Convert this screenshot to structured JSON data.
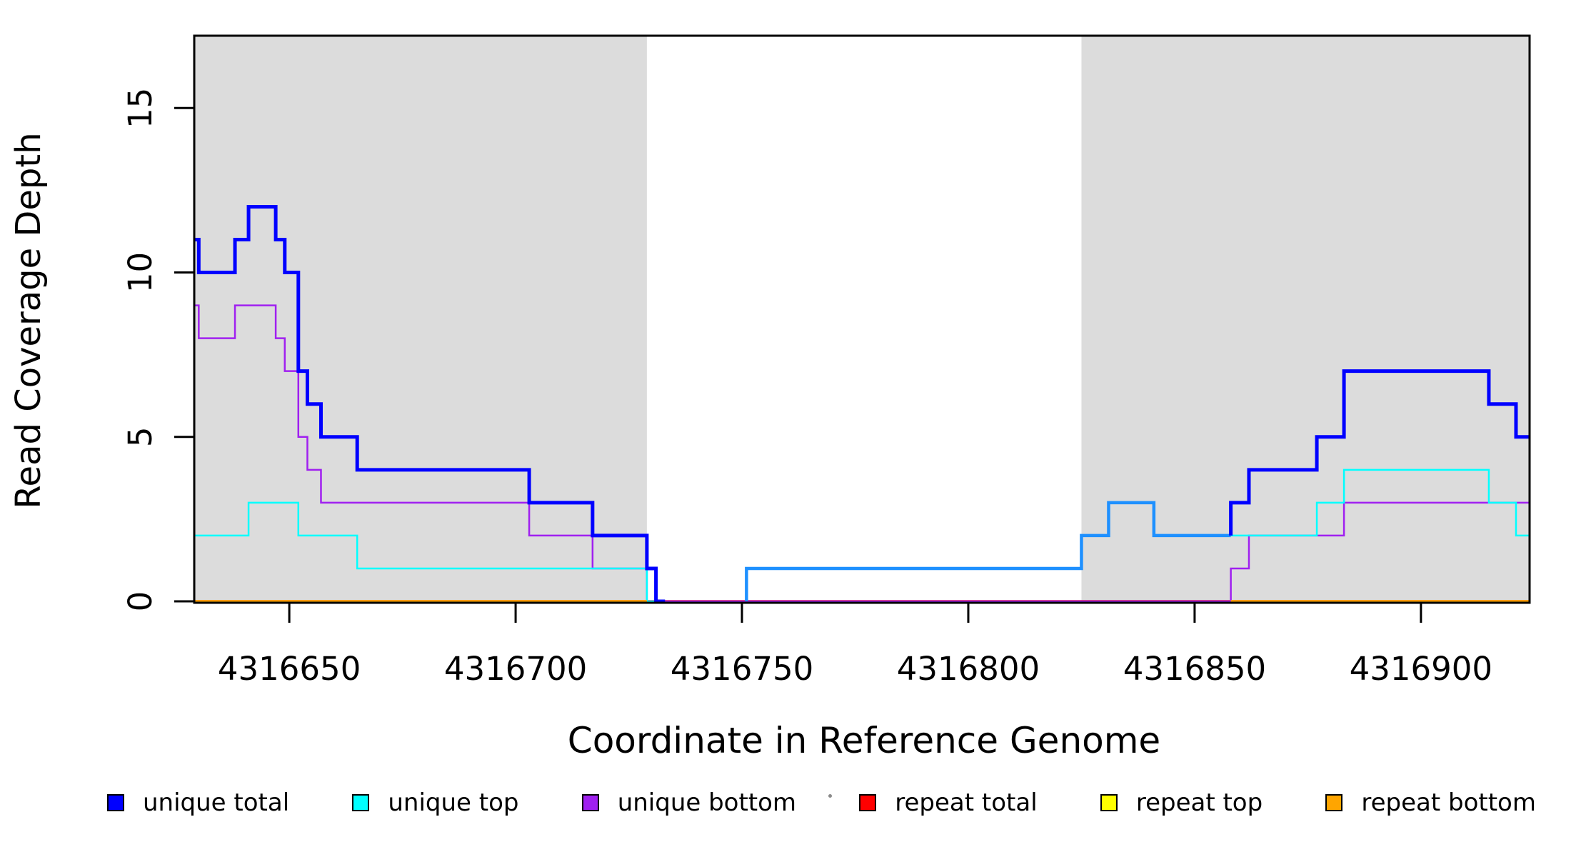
{
  "chart_data": {
    "type": "line",
    "subtype": "step-coverage-plot",
    "title": "",
    "xlabel": "Coordinate in Reference Genome",
    "ylabel": "Read Coverage Depth",
    "xlim": [
      4316629,
      4316924
    ],
    "ylim": [
      0,
      17.2
    ],
    "grid": false,
    "x_ticks": [
      4316650,
      4316700,
      4316750,
      4316800,
      4316850,
      4316900
    ],
    "x_tick_labels": [
      "4316650",
      "4316700",
      "4316750",
      "4316800",
      "4316850",
      "4316900"
    ],
    "y_ticks": [
      0,
      5,
      10,
      15
    ],
    "y_tick_labels": [
      "0",
      "5",
      "10",
      "15"
    ],
    "shaded_regions": [
      {
        "name": "repeat-region-left",
        "from": 4316629,
        "to": 4316729,
        "color": "#DCDCDC"
      },
      {
        "name": "repeat-region-right",
        "from": 4316825,
        "to": 4316924,
        "color": "#DCDCDC"
      }
    ],
    "legend_position": "bottom-horizontal",
    "legend": [
      {
        "label": "unique total",
        "color": "#0000FF"
      },
      {
        "label": "unique top",
        "color": "#00FFFF"
      },
      {
        "label": "unique bottom",
        "color": "#A020F0"
      },
      {
        "label": "repeat total",
        "color": "#FF0000"
      },
      {
        "label": "repeat top",
        "color": "#FFFF00"
      },
      {
        "label": "repeat bottom",
        "color": "#FFA500"
      }
    ],
    "series": [
      {
        "name": "unique total",
        "color": "#0000FF",
        "steps": [
          [
            4316629,
            11
          ],
          [
            4316630,
            10
          ],
          [
            4316638,
            11
          ],
          [
            4316641,
            12
          ],
          [
            4316647,
            11
          ],
          [
            4316649,
            10
          ],
          [
            4316652,
            7
          ],
          [
            4316654,
            6
          ],
          [
            4316657,
            5
          ],
          [
            4316665,
            4
          ],
          [
            4316703,
            3
          ],
          [
            4316717,
            2
          ],
          [
            4316729,
            1
          ],
          [
            4316731,
            0
          ],
          [
            4316751,
            1
          ],
          [
            4316825,
            2
          ],
          [
            4316831,
            3
          ],
          [
            4316841,
            2
          ],
          [
            4316858,
            3
          ],
          [
            4316862,
            4
          ],
          [
            4316877,
            5
          ],
          [
            4316883,
            7
          ],
          [
            4316915,
            6
          ],
          [
            4316921,
            5
          ]
        ]
      },
      {
        "name": "unique top",
        "color": "#00FFFF",
        "steps": [
          [
            4316629,
            2
          ],
          [
            4316641,
            3
          ],
          [
            4316652,
            2
          ],
          [
            4316665,
            1
          ],
          [
            4316729,
            0
          ],
          [
            4316751,
            1
          ],
          [
            4316825,
            2
          ],
          [
            4316831,
            3
          ],
          [
            4316841,
            2
          ],
          [
            4316877,
            3
          ],
          [
            4316883,
            4
          ],
          [
            4316915,
            3
          ],
          [
            4316921,
            2
          ]
        ]
      },
      {
        "name": "unique bottom",
        "color": "#A020F0",
        "steps": [
          [
            4316629,
            9
          ],
          [
            4316630,
            8
          ],
          [
            4316638,
            9
          ],
          [
            4316647,
            8
          ],
          [
            4316649,
            7
          ],
          [
            4316652,
            5
          ],
          [
            4316654,
            4
          ],
          [
            4316657,
            3
          ],
          [
            4316703,
            2
          ],
          [
            4316717,
            1
          ],
          [
            4316729,
            0
          ],
          [
            4316858,
            1
          ],
          [
            4316862,
            2
          ],
          [
            4316883,
            3
          ]
        ]
      },
      {
        "name": "repeat total",
        "color": "#FF0000",
        "steps": [
          [
            4316629,
            0
          ]
        ]
      },
      {
        "name": "repeat top",
        "color": "#FFFF00",
        "steps": [
          [
            4316629,
            0
          ]
        ]
      },
      {
        "name": "repeat bottom",
        "color": "#FFA500",
        "steps": [
          [
            4316629,
            0
          ]
        ]
      }
    ],
    "visual_lines": [
      {
        "name": "repeat-top-line",
        "color": "#FFFF00",
        "width": 2.5,
        "points": [
          [
            4316629,
            0
          ],
          [
            4316924,
            0
          ]
        ]
      },
      {
        "name": "repeat-total-line",
        "color": "#FF0000",
        "width": 3.5,
        "points": [
          [
            4316629,
            0
          ],
          [
            4316924,
            0
          ]
        ]
      },
      {
        "name": "unique-bottom-line",
        "color": "#A020F0",
        "width": 2.5,
        "points": [
          [
            4316629,
            9
          ],
          [
            4316630,
            9
          ],
          [
            4316630,
            8
          ],
          [
            4316638,
            8
          ],
          [
            4316638,
            9
          ],
          [
            4316647,
            9
          ],
          [
            4316647,
            8
          ],
          [
            4316649,
            8
          ],
          [
            4316649,
            7
          ],
          [
            4316652,
            7
          ],
          [
            4316652,
            5
          ],
          [
            4316654,
            5
          ],
          [
            4316654,
            4
          ],
          [
            4316657,
            4
          ],
          [
            4316657,
            3
          ],
          [
            4316703,
            3
          ],
          [
            4316703,
            2
          ],
          [
            4316717,
            2
          ],
          [
            4316717,
            1
          ],
          [
            4316729,
            1
          ],
          [
            4316729,
            0
          ],
          [
            4316858,
            0
          ],
          [
            4316858,
            1
          ],
          [
            4316862,
            1
          ],
          [
            4316862,
            2
          ],
          [
            4316883,
            2
          ],
          [
            4316883,
            3
          ],
          [
            4316924,
            3
          ]
        ]
      },
      {
        "name": "unique-top-line-left",
        "color": "#00FFFF",
        "width": 2.5,
        "points": [
          [
            4316629,
            2
          ],
          [
            4316641,
            2
          ],
          [
            4316641,
            3
          ],
          [
            4316652,
            3
          ],
          [
            4316652,
            2
          ],
          [
            4316665,
            2
          ],
          [
            4316665,
            1
          ],
          [
            4316729,
            1
          ],
          [
            4316729,
            0
          ],
          [
            4316731,
            0
          ]
        ]
      },
      {
        "name": "unique-total-line-left",
        "color": "#0000FF",
        "width": 5,
        "points": [
          [
            4316629,
            11
          ],
          [
            4316630,
            11
          ],
          [
            4316630,
            10
          ],
          [
            4316638,
            10
          ],
          [
            4316638,
            11
          ],
          [
            4316641,
            11
          ],
          [
            4316641,
            12
          ],
          [
            4316647,
            12
          ],
          [
            4316647,
            11
          ],
          [
            4316649,
            11
          ],
          [
            4316649,
            10
          ],
          [
            4316652,
            10
          ],
          [
            4316652,
            7
          ],
          [
            4316654,
            7
          ],
          [
            4316654,
            6
          ],
          [
            4316657,
            6
          ],
          [
            4316657,
            5
          ],
          [
            4316665,
            5
          ],
          [
            4316665,
            4
          ],
          [
            4316703,
            4
          ],
          [
            4316703,
            3
          ],
          [
            4316717,
            3
          ],
          [
            4316717,
            2
          ],
          [
            4316729,
            2
          ],
          [
            4316729,
            1
          ],
          [
            4316731,
            1
          ],
          [
            4316731,
            0
          ],
          [
            4316733,
            0
          ]
        ]
      },
      {
        "name": "unique-total-top-overlap-gap",
        "color": "#1E90FF",
        "width": 4.5,
        "points": [
          [
            4316751,
            0
          ],
          [
            4316751,
            1
          ],
          [
            4316825,
            1
          ],
          [
            4316825,
            2
          ],
          [
            4316831,
            2
          ],
          [
            4316831,
            3
          ],
          [
            4316841,
            3
          ],
          [
            4316841,
            2
          ],
          [
            4316858,
            2
          ]
        ]
      },
      {
        "name": "unique-top-line-right",
        "color": "#00FFFF",
        "width": 2.5,
        "points": [
          [
            4316858,
            2
          ],
          [
            4316877,
            2
          ],
          [
            4316877,
            3
          ],
          [
            4316883,
            3
          ],
          [
            4316883,
            4
          ],
          [
            4316915,
            4
          ],
          [
            4316915,
            3
          ],
          [
            4316921,
            3
          ],
          [
            4316921,
            2
          ],
          [
            4316924,
            2
          ]
        ]
      },
      {
        "name": "unique-total-line-right",
        "color": "#0000FF",
        "width": 5,
        "points": [
          [
            4316858,
            2
          ],
          [
            4316858,
            3
          ],
          [
            4316862,
            3
          ],
          [
            4316862,
            4
          ],
          [
            4316877,
            4
          ],
          [
            4316877,
            5
          ],
          [
            4316883,
            5
          ],
          [
            4316883,
            7
          ],
          [
            4316915,
            7
          ],
          [
            4316915,
            6
          ],
          [
            4316921,
            6
          ],
          [
            4316921,
            5
          ],
          [
            4316924,
            5
          ]
        ]
      },
      {
        "name": "repeat-bottom-line-left",
        "color": "#FFA500",
        "width": 3.5,
        "points": [
          [
            4316629,
            0
          ],
          [
            4316729,
            0
          ]
        ]
      },
      {
        "name": "repeat-bottom-line-right",
        "color": "#FFA500",
        "width": 3.5,
        "points": [
          [
            4316858,
            0
          ],
          [
            4316924,
            0
          ]
        ]
      }
    ]
  }
}
